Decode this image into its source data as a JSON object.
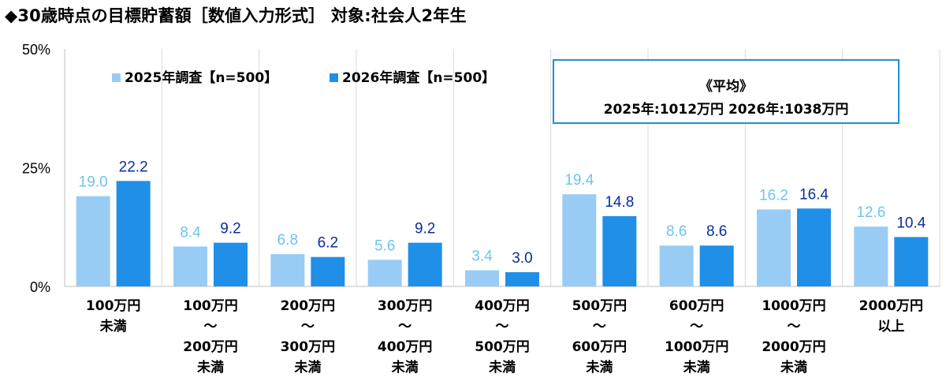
{
  "title": "◆30歳時点の目標貯蓄額［数値入力形式］ 対象:社会人2年生",
  "average_box": {
    "heading": "《平均》",
    "values": "2025年:1012万円 2026年:1038万円"
  },
  "colors": {
    "series_2025": "#99CCF5",
    "series_2026": "#1F8FE8",
    "label_2025": "#6EC4F0",
    "label_2026": "#0A2E9E",
    "grid": "#D9D9D9"
  },
  "chart_data": {
    "type": "bar",
    "title": "◆30歳時点の目標貯蓄額［数値入力形式］ 対象:社会人2年生",
    "ylim": [
      0,
      50
    ],
    "yticks": [
      "0%",
      "25%",
      "50%"
    ],
    "ytick_values": [
      0,
      25,
      50
    ],
    "grid": "vertical separators between categories",
    "legend_placement": "top-left",
    "categories": [
      [
        "100万円",
        "未満"
      ],
      [
        "100万円",
        "～",
        "200万円",
        "未満"
      ],
      [
        "200万円",
        "～",
        "300万円",
        "未満"
      ],
      [
        "300万円",
        "～",
        "400万円",
        "未満"
      ],
      [
        "400万円",
        "～",
        "500万円",
        "未満"
      ],
      [
        "500万円",
        "～",
        "600万円",
        "未満"
      ],
      [
        "600万円",
        "～",
        "1000万円",
        "未満"
      ],
      [
        "1000万円",
        "～",
        "2000万円",
        "未満"
      ],
      [
        "2000万円",
        "以上"
      ]
    ],
    "series": [
      {
        "name": "2025年調査【n=500】",
        "values": [
          19.0,
          8.4,
          6.8,
          5.6,
          3.4,
          19.4,
          8.6,
          16.2,
          12.6
        ]
      },
      {
        "name": "2026年調査【n=500】",
        "values": [
          22.2,
          9.2,
          6.2,
          9.2,
          3.0,
          14.8,
          8.6,
          16.4,
          10.4
        ]
      }
    ]
  }
}
